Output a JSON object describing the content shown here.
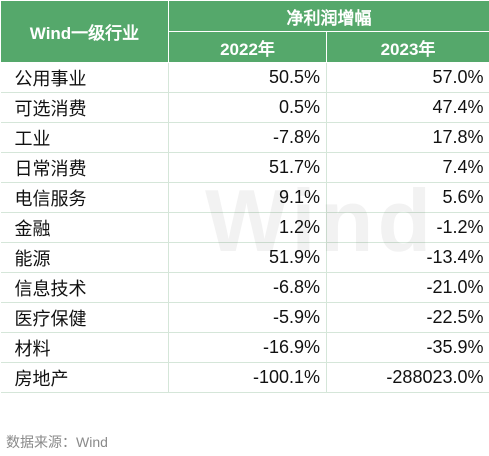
{
  "table": {
    "header": {
      "category": "Wind一级行业",
      "group": "净利润增幅",
      "columns": [
        "2022年",
        "2023年"
      ]
    },
    "rows": [
      [
        "公用事业",
        "50.5%",
        "57.0%"
      ],
      [
        "可选消费",
        "0.5%",
        "47.4%"
      ],
      [
        "工业",
        "-7.8%",
        "17.8%"
      ],
      [
        "日常消费",
        "51.7%",
        "7.4%"
      ],
      [
        "电信服务",
        "9.1%",
        "5.6%"
      ],
      [
        "金融",
        "1.2%",
        "-1.2%"
      ],
      [
        "能源",
        "51.9%",
        "-13.4%"
      ],
      [
        "信息技术",
        "-6.8%",
        "-21.0%"
      ],
      [
        "医疗保健",
        "-5.9%",
        "-22.5%"
      ],
      [
        "材料",
        "-16.9%",
        "-35.9%"
      ],
      [
        "房地产",
        "-100.1%",
        "-288023.0%"
      ]
    ]
  },
  "watermark": "Wind",
  "source": "数据来源：Wind"
}
